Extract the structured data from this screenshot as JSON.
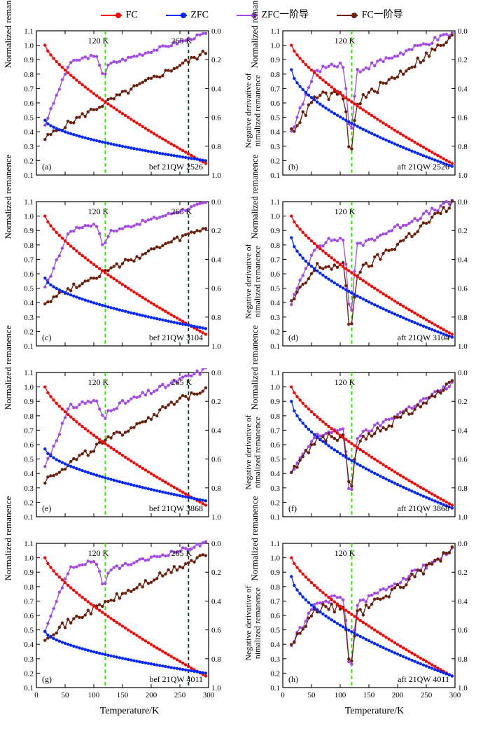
{
  "legend": {
    "items": [
      {
        "label": "FC",
        "color": "#ff0000"
      },
      {
        "label": "ZFC",
        "color": "#0026ff"
      },
      {
        "label": "ZFC一阶导",
        "color": "#a349e8"
      },
      {
        "label": "FC一阶导",
        "color": "#6b1e0a"
      }
    ]
  },
  "axes": {
    "xlabel": "Temperature/K",
    "ylabel_left": "Normalized remanence",
    "ylabel_right": "Negative derivative of\nnimalized remanence",
    "xlim": [
      0,
      300
    ],
    "xticks": [
      0,
      50,
      100,
      150,
      200,
      250,
      300
    ],
    "left_ylim": [
      0.1,
      1.1
    ],
    "left_yticks": [
      0.1,
      0.2,
      0.3,
      0.4,
      0.5,
      0.6,
      0.7,
      0.8,
      0.9,
      1.0,
      1.1
    ],
    "right_ylim_inv": [
      0.0,
      1.0
    ],
    "right_yticks": [
      0.0,
      0.2,
      0.4,
      0.6,
      0.8,
      1.0
    ]
  },
  "colors": {
    "fc": "#ff0000",
    "zfc": "#0026ff",
    "zfcD": "#a349e8",
    "fcD": "#6b1e0a",
    "vline_green": "#2ee600",
    "vline_black": "#073b19",
    "border": "#000000",
    "tick": "#000000",
    "text": "#000000"
  },
  "style": {
    "line_width": 1.3,
    "marker_size": 2.2,
    "dash": "5,4",
    "tick_fontsize": 11,
    "label_fontsize": 13,
    "annot_fontsize": 12
  },
  "panels": [
    {
      "id": "a",
      "tag": "(a)",
      "sample": "bef 21QW 2526",
      "annots": [
        "120 K",
        "265 K"
      ],
      "vlines": [
        {
          "x": 120,
          "c": "vline_green"
        },
        {
          "x": 265,
          "c": "vline_black"
        }
      ],
      "fc_start": 0.48,
      "fc_end": 0.2,
      "zfcD_base": 0.8,
      "zfcD_dipX": 120,
      "zfcD_dipDepth": 0.1,
      "zfcD_start": 0.35,
      "zfcD_end": 0.98,
      "zfcD_noise": 0.012,
      "fcD_start": 0.25,
      "fcD_mid": 0.55,
      "fcD_end": 0.85,
      "fcD_noise": 0.02
    },
    {
      "id": "b",
      "tag": "(b)",
      "sample": "aft 21QW 2526",
      "annots": [
        "120 K"
      ],
      "vlines": [
        {
          "x": 120,
          "c": "vline_green"
        }
      ],
      "fc_start": 0.83,
      "fc_end": 0.16,
      "zfcD_base": 0.75,
      "zfcD_dipX": 120,
      "zfcD_dipDepth": 0.45,
      "zfcD_start": 0.3,
      "zfcD_end": 0.98,
      "zfcD_noise": 0.02,
      "fcD_start": 0.3,
      "fcD_mid": 0.55,
      "fcD_end": 0.95,
      "fcD_noise": 0.03,
      "fcD_overlap": true
    },
    {
      "id": "c",
      "tag": "(c)",
      "sample": "bef 21QW 3104",
      "annots": [
        "120 K",
        "265 K"
      ],
      "vlines": [
        {
          "x": 120,
          "c": "vline_green"
        },
        {
          "x": 265,
          "c": "vline_black"
        }
      ],
      "fc_start": 0.57,
      "fc_end": 0.22,
      "zfcD_base": 0.82,
      "zfcD_dipX": 120,
      "zfcD_dipDepth": 0.12,
      "zfcD_start": 0.4,
      "zfcD_end": 0.99,
      "zfcD_noise": 0.012,
      "fcD_start": 0.3,
      "fcD_mid": 0.55,
      "fcD_end": 0.82,
      "fcD_noise": 0.02
    },
    {
      "id": "d",
      "tag": "(d)",
      "sample": "aft 21QW 3104",
      "annots": [
        "120 K"
      ],
      "vlines": [
        {
          "x": 120,
          "c": "vline_green"
        }
      ],
      "fc_start": 0.85,
      "fc_end": 0.16,
      "zfcD_base": 0.72,
      "zfcD_dipX": 120,
      "zfcD_dipDepth": 0.48,
      "zfcD_start": 0.3,
      "zfcD_end": 1.0,
      "zfcD_noise": 0.02,
      "fcD_start": 0.3,
      "fcD_mid": 0.55,
      "fcD_end": 0.98,
      "fcD_noise": 0.03,
      "fcD_overlap": true
    },
    {
      "id": "e",
      "tag": "(e)",
      "sample": "bef 21QW 3868",
      "annots": [
        "120 K",
        "265 K"
      ],
      "vlines": [
        {
          "x": 120,
          "c": "vline_green"
        },
        {
          "x": 265,
          "c": "vline_black"
        }
      ],
      "fc_start": 0.57,
      "fc_end": 0.21,
      "zfcD_base": 0.78,
      "zfcD_dipX": 120,
      "zfcD_dipDepth": 0.1,
      "zfcD_start": 0.35,
      "zfcD_end": 1.02,
      "zfcD_noise": 0.02,
      "fcD_start": 0.25,
      "fcD_mid": 0.55,
      "fcD_end": 0.9,
      "fcD_noise": 0.025
    },
    {
      "id": "f",
      "tag": "(f)",
      "sample": "aft 21QW 3868",
      "annots": [
        "120 K"
      ],
      "vlines": [
        {
          "x": 120,
          "c": "vline_green"
        }
      ],
      "fc_start": 0.9,
      "fc_end": 0.16,
      "zfcD_base": 0.58,
      "zfcD_dipX": 120,
      "zfcD_dipDepth": 0.42,
      "zfcD_start": 0.3,
      "zfcD_end": 0.92,
      "zfcD_noise": 0.018,
      "fcD_start": 0.3,
      "fcD_mid": 0.55,
      "fcD_end": 0.92,
      "fcD_noise": 0.03,
      "fcD_overlap": true
    },
    {
      "id": "g",
      "tag": "(g)",
      "sample": "bef 21QW 4011",
      "annots": [
        "120 K",
        "265 K"
      ],
      "vlines": [
        {
          "x": 120,
          "c": "vline_green"
        },
        {
          "x": 265,
          "c": "vline_black"
        }
      ],
      "fc_start": 0.49,
      "fc_end": 0.2,
      "zfcD_base": 0.85,
      "zfcD_dipX": 120,
      "zfcD_dipDepth": 0.15,
      "zfcD_start": 0.4,
      "zfcD_end": 1.0,
      "zfcD_noise": 0.014,
      "fcD_start": 0.35,
      "fcD_mid": 0.6,
      "fcD_end": 0.92,
      "fcD_noise": 0.025
    },
    {
      "id": "h",
      "tag": "(h)",
      "sample": "aft 21QW 4011",
      "annots": [
        "120 K"
      ],
      "vlines": [
        {
          "x": 120,
          "c": "vline_green"
        }
      ],
      "fc_start": 0.87,
      "fc_end": 0.18,
      "zfcD_base": 0.6,
      "zfcD_dipX": 120,
      "zfcD_dipDepth": 0.45,
      "zfcD_start": 0.3,
      "zfcD_end": 0.95,
      "zfcD_noise": 0.02,
      "fcD_start": 0.3,
      "fcD_mid": 0.55,
      "fcD_end": 0.95,
      "fcD_noise": 0.03,
      "fcD_overlap": true
    }
  ]
}
